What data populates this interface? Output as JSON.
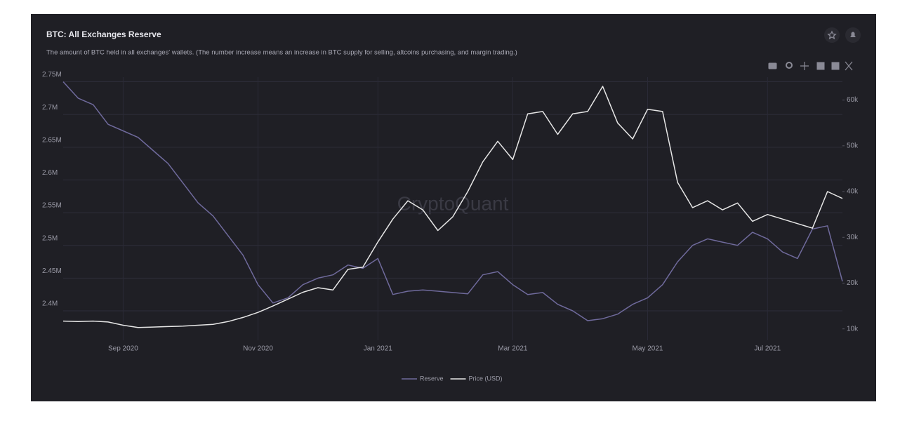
{
  "chart_data": {
    "type": "line",
    "title": "BTC: All Exchanges Reserve",
    "subtitle": "The amount of BTC held in all exchanges' wallets. (The number increase means an increase in BTC supply for selling, altcoins purchasing, and margin trading.)",
    "watermark": "CryptoQuant",
    "categories": [
      null,
      null,
      null,
      null,
      "Sep 2020",
      null,
      null,
      null,
      null,
      null,
      null,
      null,
      null,
      "Nov 2020",
      null,
      null,
      null,
      null,
      null,
      null,
      null,
      "Jan 2021",
      null,
      null,
      null,
      null,
      null,
      null,
      null,
      null,
      "Mar 2021",
      null,
      null,
      null,
      null,
      null,
      null,
      null,
      null,
      "May 2021",
      null,
      null,
      null,
      null,
      null,
      null,
      null,
      "Jul 2021",
      null,
      null,
      null,
      null,
      null
    ],
    "series": [
      {
        "name": "Reserve",
        "color": "#6f6a9c",
        "axis": "y",
        "values": [
          2750000,
          2725000,
          2715000,
          2685000,
          2675000,
          2665000,
          2645000,
          2625000,
          2595000,
          2565000,
          2545000,
          2515000,
          2485000,
          2440000,
          2412000,
          2420000,
          2440000,
          2450000,
          2455000,
          2470000,
          2465000,
          2480000,
          2425000,
          2430000,
          2432000,
          2430000,
          2428000,
          2426000,
          2455000,
          2460000,
          2440000,
          2425000,
          2428000,
          2410000,
          2400000,
          2385000,
          2388000,
          2395000,
          2410000,
          2420000,
          2440000,
          2475000,
          2500000,
          2510000,
          2505000,
          2500000,
          2520000,
          2510000,
          2490000,
          2480000,
          2525000,
          2530000,
          2445000
        ]
      },
      {
        "name": "Price (USD)",
        "color": "#e6e6e6",
        "axis": "y2",
        "values": [
          11700,
          11600,
          11700,
          11500,
          10800,
          10300,
          10400,
          10500,
          10600,
          10800,
          11000,
          11600,
          12500,
          13600,
          15000,
          16500,
          18000,
          19000,
          18500,
          23000,
          23500,
          29000,
          34000,
          38000,
          36000,
          31500,
          34500,
          40000,
          46500,
          51000,
          47000,
          57000,
          57500,
          52500,
          57000,
          57500,
          63000,
          55000,
          51500,
          58000,
          57500,
          42000,
          36500,
          38000,
          36000,
          37500,
          33500,
          35000,
          34000,
          33000,
          32000,
          40000,
          38500
        ]
      }
    ],
    "ylim": [
      2355000,
      2757000
    ],
    "yticks": [
      {
        "value": 2400000,
        "label": "2.4M"
      },
      {
        "value": 2450000,
        "label": "2.45M"
      },
      {
        "value": 2500000,
        "label": "2.5M"
      },
      {
        "value": 2550000,
        "label": "2.55M"
      },
      {
        "value": 2600000,
        "label": "2.6M"
      },
      {
        "value": 2650000,
        "label": "2.65M"
      },
      {
        "value": 2700000,
        "label": "2.7M"
      },
      {
        "value": 2750000,
        "label": "2.75M"
      }
    ],
    "y2lim": [
      7500,
      65000
    ],
    "y2ticks": [
      {
        "value": 10000,
        "label": "10k"
      },
      {
        "value": 20000,
        "label": "20k"
      },
      {
        "value": 30000,
        "label": "30k"
      },
      {
        "value": 40000,
        "label": "40k"
      },
      {
        "value": 50000,
        "label": "50k"
      },
      {
        "value": 60000,
        "label": "60k"
      }
    ],
    "grid": true
  }
}
